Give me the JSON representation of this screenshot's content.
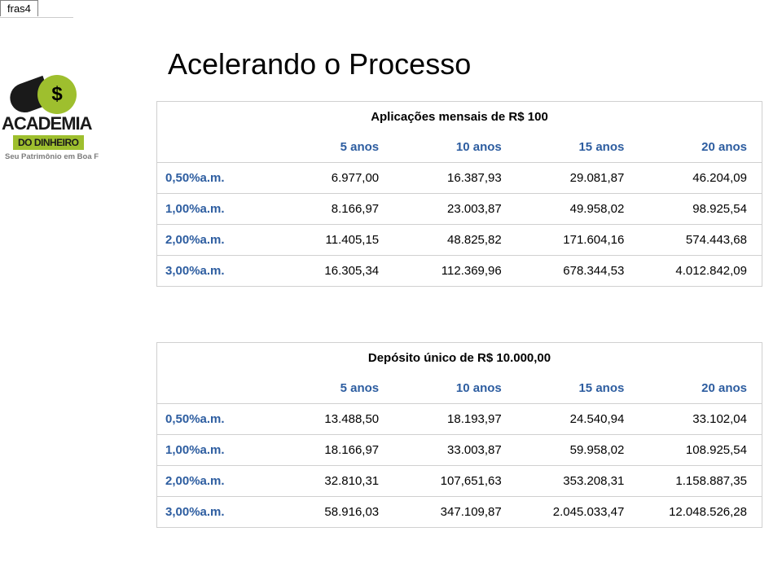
{
  "tab_label": "fras4",
  "title": "Acelerando o Processo",
  "logo": {
    "coin_symbol": "$",
    "main_text": "ACADEMIA",
    "sub_text": "DO DINHEIRO",
    "tagline": "Seu Patrimônio em Boa F"
  },
  "table1": {
    "caption": "Aplicações mensais de R$ 100",
    "col_headers": [
      "5 anos",
      "10 anos",
      "15 anos",
      "20 anos"
    ],
    "rows": [
      {
        "label": "0,50%a.m.",
        "cells": [
          "6.977,00",
          "16.387,93",
          "29.081,87",
          "46.204,09"
        ]
      },
      {
        "label": "1,00%a.m.",
        "cells": [
          "8.166,97",
          "23.003,87",
          "49.958,02",
          "98.925,54"
        ]
      },
      {
        "label": "2,00%a.m.",
        "cells": [
          "11.405,15",
          "48.825,82",
          "171.604,16",
          "574.443,68"
        ]
      },
      {
        "label": "3,00%a.m.",
        "cells": [
          "16.305,34",
          "112.369,96",
          "678.344,53",
          "4.012.842,09"
        ]
      }
    ]
  },
  "table2": {
    "caption": "Depósito único de R$ 10.000,00",
    "col_headers": [
      "5 anos",
      "10 anos",
      "15 anos",
      "20 anos"
    ],
    "rows": [
      {
        "label": "0,50%a.m.",
        "cells": [
          "13.488,50",
          "18.193,97",
          "24.540,94",
          "33.102,04"
        ]
      },
      {
        "label": "1,00%a.m.",
        "cells": [
          "18.166,97",
          "33.003,87",
          "59.958,02",
          "108.925,54"
        ]
      },
      {
        "label": "2,00%a.m.",
        "cells": [
          "32.810,31",
          "107,651,63",
          "353.208,31",
          "1.158.887,35"
        ]
      },
      {
        "label": "3,00%a.m.",
        "cells": [
          "58.916,03",
          "347.109,87",
          "2.045.033,47",
          "12.048.526,28"
        ]
      }
    ]
  },
  "colors": {
    "header_text": "#2d5da0",
    "border": "#d0d0d0",
    "logo_green": "#9ebf2e",
    "logo_dark": "#1a1a1a",
    "tagline_gray": "#7c7c7c"
  }
}
